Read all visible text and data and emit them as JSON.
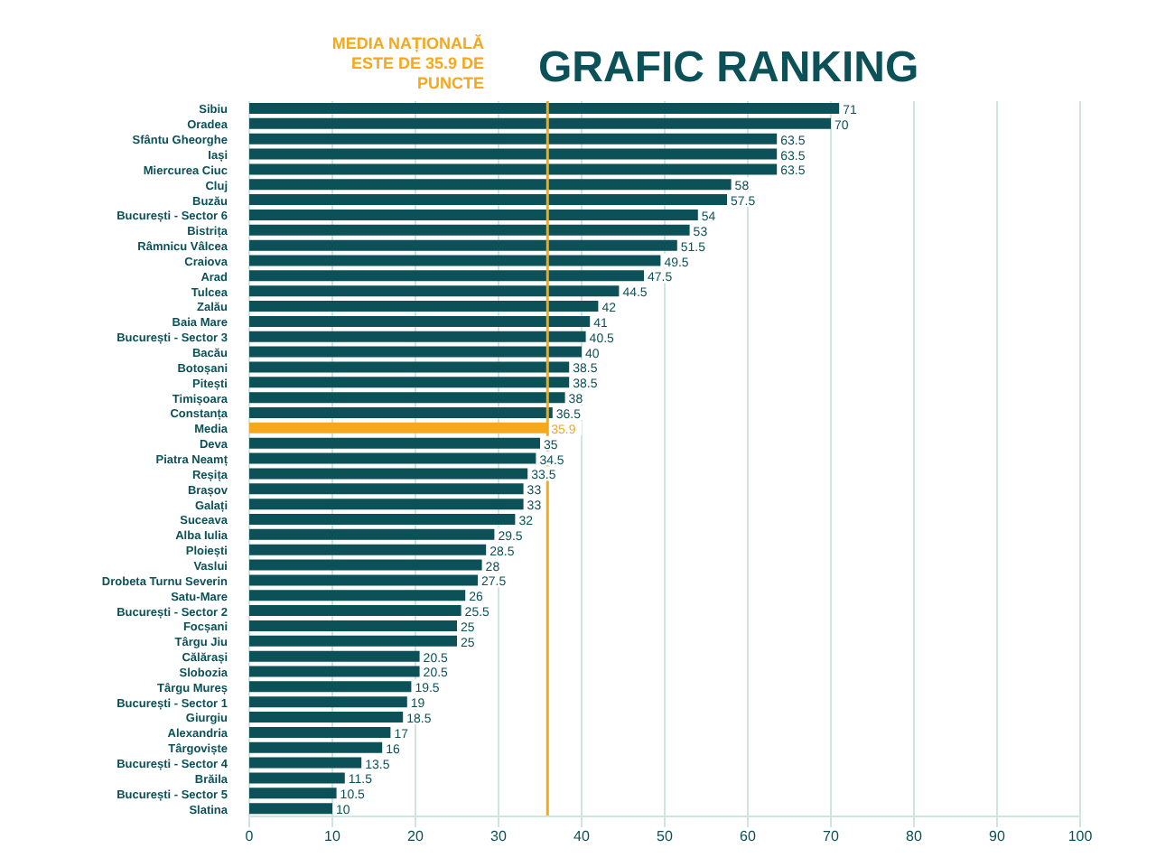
{
  "chart_data": {
    "type": "bar",
    "orientation": "horizontal",
    "title": "GRAFIC RANKING",
    "categories": [
      "Sibiu",
      "Oradea",
      "Sfântu Gheorghe",
      "Iași",
      "Miercurea Ciuc",
      "Cluj",
      "Buzău",
      "București - Sector 6",
      "Bistrița",
      "Râmnicu Vâlcea",
      "Craiova",
      "Arad",
      "Tulcea",
      "Zalău",
      "Baia Mare",
      "București - Sector 3",
      "Bacău",
      "Botoșani",
      "Pitești",
      "Timișoara",
      "Constanța",
      "Media",
      "Deva",
      "Piatra Neamț",
      "Reșița",
      "Brașov",
      "Galați",
      "Suceava",
      "Alba Iulia",
      "Ploiești",
      "Vaslui",
      "Drobeta Turnu Severin",
      "Satu-Mare",
      "București - Sector 2",
      "Focșani",
      "Târgu Jiu",
      "Călărași",
      "Slobozia",
      "Târgu Mureș",
      "București - Sector 1",
      "Giurgiu",
      "Alexandria",
      "Târgoviște",
      "București - Sector 4",
      "Brăila",
      "București - Sector 5",
      "Slatina"
    ],
    "values": [
      71,
      70,
      63.5,
      63.5,
      63.5,
      58,
      57.5,
      54,
      53,
      51.5,
      49.5,
      47.5,
      44.5,
      42,
      41,
      40.5,
      40,
      38.5,
      38.5,
      38,
      36.5,
      35.9,
      35,
      34.5,
      33.5,
      33,
      33,
      32,
      29.5,
      28.5,
      28,
      27.5,
      26,
      25.5,
      25,
      25,
      20.5,
      20.5,
      19.5,
      19,
      18.5,
      17,
      16,
      13.5,
      11.5,
      10.5,
      10
    ],
    "colors": [
      "#0b5157",
      "#0b5157",
      "#0b5157",
      "#0b5157",
      "#0b5157",
      "#0b5157",
      "#0b5157",
      "#0b5157",
      "#0b5157",
      "#0b5157",
      "#0b5157",
      "#0b5157",
      "#0b5157",
      "#0b5157",
      "#0b5157",
      "#0b5157",
      "#0b5157",
      "#0b5157",
      "#0b5157",
      "#0b5157",
      "#0b5157",
      "#f6a81c",
      "#0b5157",
      "#0b5157",
      "#0b5157",
      "#0b5157",
      "#0b5157",
      "#0b5157",
      "#0b5157",
      "#0b5157",
      "#0b5157",
      "#0b5157",
      "#0b5157",
      "#0b5157",
      "#0b5157",
      "#0b5157",
      "#0b5157",
      "#0b5157",
      "#0b5157",
      "#0b5157",
      "#0b5157",
      "#0b5157",
      "#0b5157",
      "#0b5157",
      "#0b5157",
      "#0b5157",
      "#0b5157"
    ],
    "xlim": [
      0,
      100
    ],
    "xticks": [
      0,
      10,
      20,
      30,
      40,
      50,
      60,
      70,
      80,
      90,
      100
    ],
    "grid": "x",
    "data_labels": true,
    "ref_lines": [
      {
        "axis": "x",
        "value": 35.9,
        "label": "MEDIA NAȚIONALĂ ESTE DE 35.9 DE PUNCTE",
        "color": "#f6a81c"
      }
    ]
  }
}
